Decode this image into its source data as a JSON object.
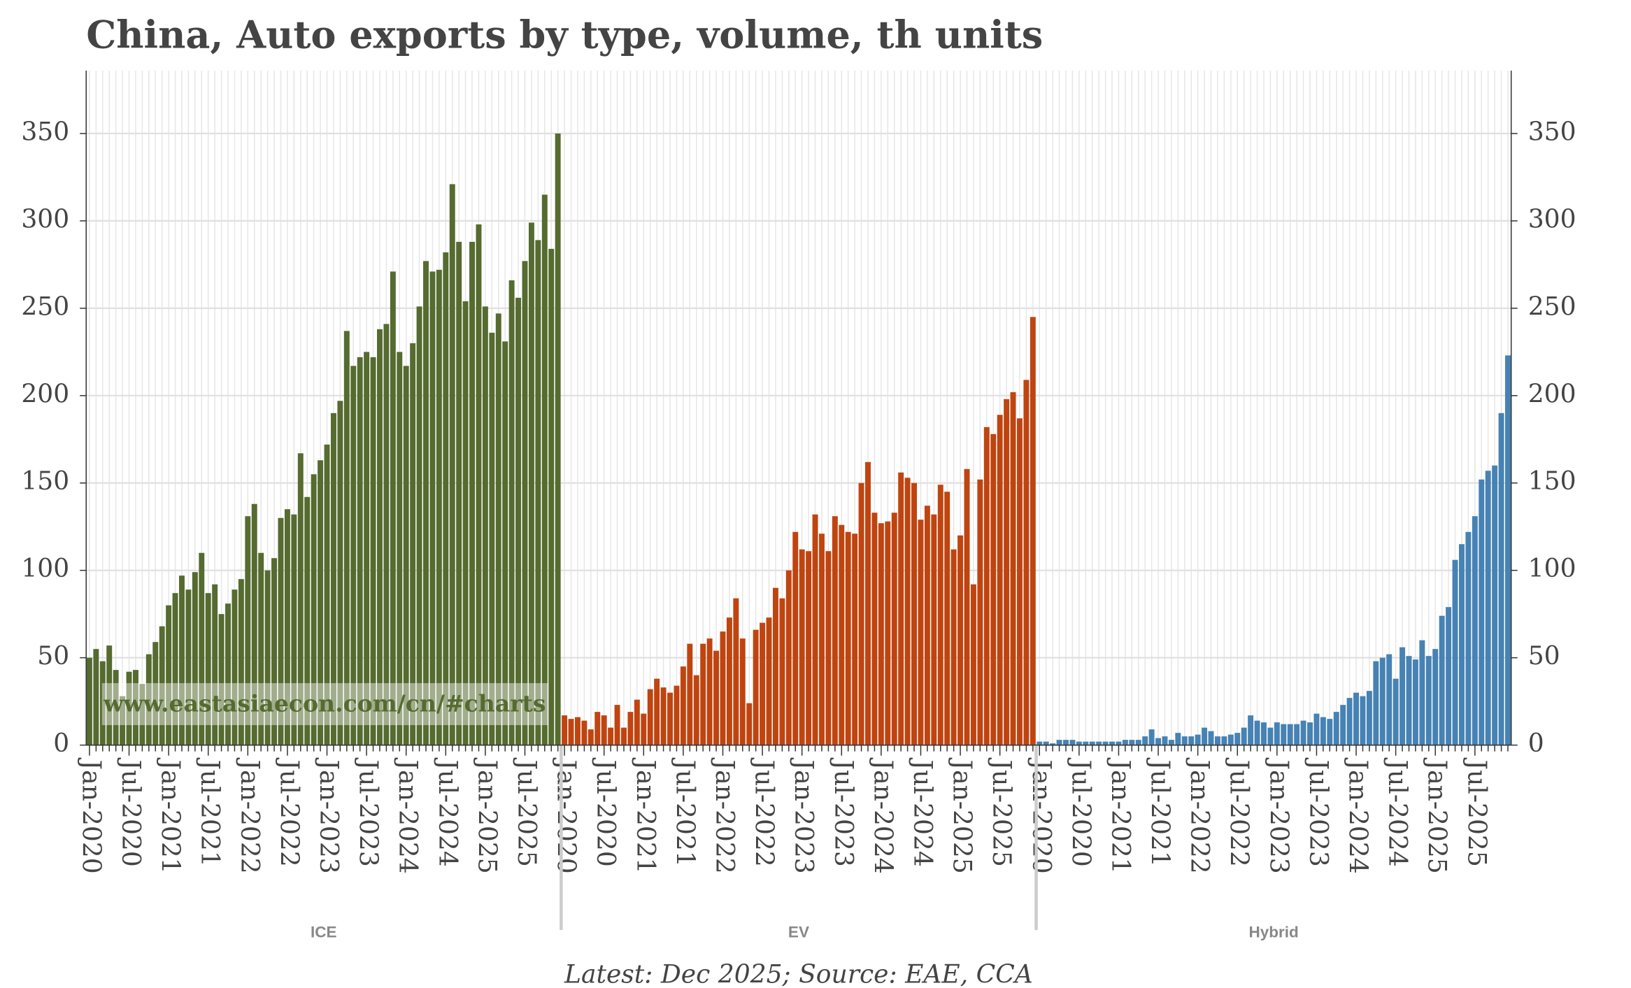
{
  "chart_data": {
    "type": "bar",
    "title": "China, Auto exports by type, volume, th units",
    "caption": "Latest: Dec 2025; Source: EAE, CCA",
    "watermark": "www.eastasiaecon.com/cn/#charts",
    "categories": [
      "Jan-2020",
      null,
      null,
      null,
      null,
      null,
      "Jul-2020",
      null,
      null,
      null,
      null,
      null,
      "Jan-2021",
      null,
      null,
      null,
      null,
      null,
      "Jul-2021",
      null,
      null,
      null,
      null,
      null,
      "Jan-2022",
      null,
      null,
      null,
      null,
      null,
      "Jul-2022",
      null,
      null,
      null,
      null,
      null,
      "Jan-2023",
      null,
      null,
      null,
      null,
      null,
      "Jul-2023",
      null,
      null,
      null,
      null,
      null,
      "Jan-2024",
      null,
      null,
      null,
      null,
      null,
      "Jul-2024",
      null,
      null,
      null,
      null,
      null,
      "Jan-2025",
      null,
      null,
      null,
      null,
      null,
      "Jul-2025",
      null,
      null,
      null,
      null,
      null
    ],
    "series": [
      {
        "name": "ICE",
        "color": "#556b2f",
        "values": [
          50,
          55,
          48,
          57,
          43,
          28,
          42,
          43,
          35,
          52,
          59,
          68,
          80,
          87,
          97,
          89,
          99,
          110,
          87,
          92,
          75,
          81,
          89,
          95,
          131,
          138,
          110,
          100,
          107,
          130,
          135,
          132,
          167,
          142,
          155,
          163,
          172,
          190,
          197,
          237,
          217,
          222,
          225,
          222,
          238,
          241,
          271,
          225,
          217,
          230,
          251,
          277,
          271,
          272,
          282,
          321,
          288,
          254,
          288,
          298,
          251,
          236,
          247,
          231,
          266,
          256,
          277,
          299,
          289,
          315,
          284,
          350
        ]
      },
      {
        "name": "EV",
        "color": "#c0440f",
        "values": [
          17,
          15,
          16,
          14,
          9,
          19,
          17,
          10,
          23,
          10,
          19,
          26,
          18,
          32,
          38,
          33,
          30,
          34,
          45,
          58,
          40,
          58,
          61,
          54,
          65,
          73,
          84,
          61,
          24,
          66,
          70,
          73,
          90,
          84,
          100,
          122,
          112,
          111,
          132,
          121,
          111,
          131,
          126,
          122,
          121,
          150,
          162,
          133,
          127,
          128,
          133,
          156,
          153,
          150,
          129,
          137,
          132,
          149,
          145,
          112,
          120,
          158,
          92,
          152,
          182,
          178,
          189,
          198,
          202,
          187,
          209,
          245
        ]
      },
      {
        "name": "Hybrid",
        "color": "#4682b4",
        "values": [
          2,
          2,
          1,
          3,
          3,
          3,
          2,
          2,
          2,
          2,
          2,
          2,
          2,
          3,
          3,
          3,
          5,
          9,
          4,
          5,
          3,
          7,
          5,
          5,
          6,
          10,
          8,
          5,
          5,
          6,
          7,
          10,
          17,
          14,
          13,
          10,
          13,
          12,
          12,
          12,
          14,
          13,
          18,
          16,
          15,
          19,
          23,
          27,
          30,
          28,
          31,
          48,
          50,
          52,
          38,
          56,
          51,
          49,
          60,
          51,
          55,
          74,
          79,
          106,
          115,
          122,
          131,
          152,
          157,
          160,
          190,
          223
        ]
      }
    ],
    "ylim": [
      0,
      386
    ],
    "yticks": [
      0,
      50,
      100,
      150,
      200,
      250,
      300,
      350
    ],
    "grid": true
  }
}
